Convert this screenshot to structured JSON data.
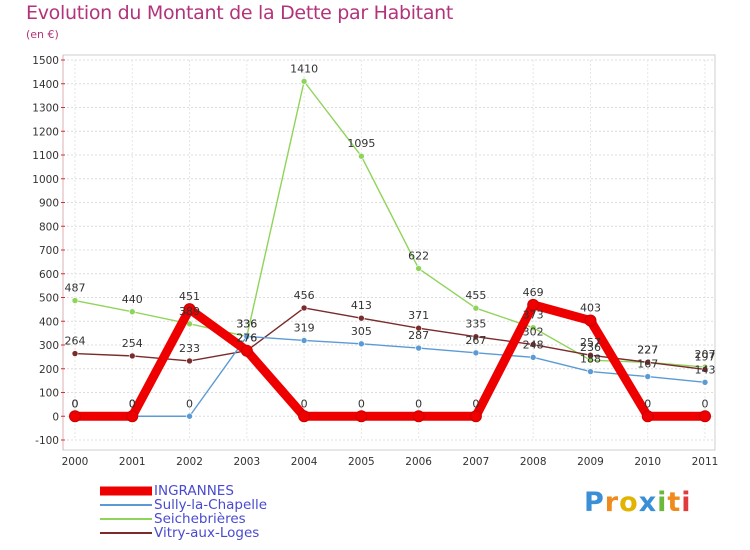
{
  "title": "Evolution du Montant de la Dette par Habitant",
  "subtitle": "(en €)",
  "logo": {
    "letters": [
      "P",
      "r",
      "o",
      "x",
      "i",
      "t",
      "i"
    ],
    "colors": [
      "#3a8fd6",
      "#f08a1c",
      "#e0b400",
      "#3a8fd6",
      "#6ab83c",
      "#f08a1c",
      "#e23b3b"
    ]
  },
  "chart_data": {
    "type": "line",
    "title": "Evolution du Montant de la Dette par Habitant",
    "subtitle": "(en €)",
    "x": [
      "2000",
      "2001",
      "2002",
      "2003",
      "2004",
      "2005",
      "2006",
      "2007",
      "2008",
      "2009",
      "2010",
      "2011"
    ],
    "ylim": [
      -100,
      1500
    ],
    "yticks": [
      -100,
      0,
      100,
      200,
      300,
      400,
      500,
      600,
      700,
      800,
      900,
      1000,
      1100,
      1200,
      1300,
      1400,
      1500
    ],
    "grid": true,
    "legend_position": "bottom-left",
    "series": [
      {
        "name": "INGRANNES",
        "color": "#ee0000",
        "line_width": 9,
        "values": [
          0,
          0,
          451,
          276,
          0,
          0,
          0,
          0,
          469,
          403,
          0,
          0
        ]
      },
      {
        "name": "Sully-la-Chapelle",
        "color": "#5b9bd5",
        "line_width": 1.4,
        "values": [
          0,
          0,
          0,
          336,
          319,
          305,
          287,
          267,
          248,
          188,
          167,
          143
        ]
      },
      {
        "name": "Seichebrières",
        "color": "#8fd45a",
        "line_width": 1.4,
        "values": [
          487,
          440,
          389,
          336,
          1410,
          1095,
          622,
          455,
          373,
          236,
          227,
          207
        ]
      },
      {
        "name": "Vitry-aux-Loges",
        "color": "#7a2b2b",
        "line_width": 1.4,
        "values": [
          264,
          254,
          233,
          276,
          456,
          413,
          371,
          335,
          302,
          257,
          227,
          197
        ]
      }
    ],
    "data_labels": [
      {
        "series": 0,
        "labels": [
          "0",
          "0",
          "451",
          "276",
          "0",
          "0",
          "0",
          "0",
          "469",
          "403",
          "0",
          "0"
        ]
      },
      {
        "series": 1,
        "labels": [
          "0",
          "0",
          "0",
          "336",
          "319",
          "305",
          "287",
          "267",
          "248",
          "188",
          "167",
          "143"
        ]
      },
      {
        "series": 2,
        "labels": [
          "487",
          "440",
          "389",
          "336",
          "1410",
          "1095",
          "622",
          "455",
          "373",
          "236",
          "227",
          "207"
        ]
      },
      {
        "series": 3,
        "labels": [
          "264",
          "254",
          "233",
          "276",
          "456",
          "413",
          "371",
          "335",
          "302",
          "257",
          "227",
          "197"
        ]
      }
    ]
  }
}
